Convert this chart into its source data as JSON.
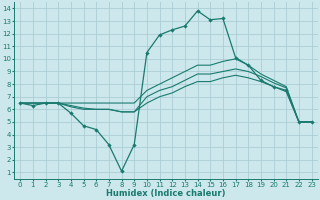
{
  "title": "",
  "xlabel": "Humidex (Indice chaleur)",
  "bg_color": "#cce8ec",
  "grid_color": "#aacdd4",
  "line_color": "#1a7a6e",
  "xlim": [
    -0.5,
    23.5
  ],
  "ylim": [
    0.5,
    14.5
  ],
  "xticks": [
    0,
    1,
    2,
    3,
    4,
    5,
    6,
    7,
    8,
    9,
    10,
    11,
    12,
    13,
    14,
    15,
    16,
    17,
    18,
    19,
    20,
    21,
    22,
    23
  ],
  "yticks": [
    1,
    2,
    3,
    4,
    5,
    6,
    7,
    8,
    9,
    10,
    11,
    12,
    13,
    14
  ],
  "curve1_x": [
    0,
    1,
    2,
    3,
    4,
    5,
    6,
    7,
    8,
    9,
    10,
    11,
    12,
    13,
    14,
    15,
    16,
    17,
    18,
    19,
    20,
    21,
    22,
    23
  ],
  "curve1_y": [
    6.5,
    6.3,
    6.5,
    6.5,
    5.7,
    4.7,
    4.4,
    3.2,
    1.1,
    3.2,
    10.5,
    11.9,
    12.3,
    12.6,
    13.8,
    13.1,
    13.2,
    10.1,
    9.5,
    8.3,
    7.8,
    7.5,
    5.0,
    5.0
  ],
  "curve2_x": [
    0,
    1,
    2,
    3,
    4,
    5,
    6,
    7,
    8,
    9,
    10,
    11,
    12,
    13,
    14,
    15,
    16,
    17,
    18,
    19,
    20,
    21,
    22,
    23
  ],
  "curve2_y": [
    6.5,
    6.5,
    6.5,
    6.5,
    6.5,
    6.5,
    6.5,
    6.5,
    6.5,
    6.5,
    7.5,
    8.0,
    8.5,
    9.0,
    9.5,
    9.5,
    9.8,
    10.0,
    9.5,
    8.8,
    8.3,
    7.8,
    5.0,
    5.0
  ],
  "curve3_x": [
    0,
    1,
    2,
    3,
    4,
    5,
    6,
    7,
    8,
    9,
    10,
    11,
    12,
    13,
    14,
    15,
    16,
    17,
    18,
    19,
    20,
    21,
    22,
    23
  ],
  "curve3_y": [
    6.5,
    6.5,
    6.5,
    6.5,
    6.2,
    6.0,
    6.0,
    6.0,
    5.8,
    5.8,
    7.0,
    7.5,
    7.8,
    8.3,
    8.8,
    8.8,
    9.0,
    9.2,
    9.0,
    8.6,
    8.1,
    7.7,
    5.0,
    5.0
  ],
  "curve4_x": [
    0,
    1,
    2,
    3,
    4,
    5,
    6,
    7,
    8,
    9,
    10,
    11,
    12,
    13,
    14,
    15,
    16,
    17,
    18,
    19,
    20,
    21,
    22,
    23
  ],
  "curve4_y": [
    6.5,
    6.5,
    6.5,
    6.5,
    6.3,
    6.1,
    6.0,
    6.0,
    5.8,
    5.8,
    6.5,
    7.0,
    7.3,
    7.8,
    8.2,
    8.2,
    8.5,
    8.7,
    8.5,
    8.2,
    7.8,
    7.4,
    5.0,
    5.0
  ],
  "xlabel_fontsize": 6,
  "tick_fontsize": 5
}
